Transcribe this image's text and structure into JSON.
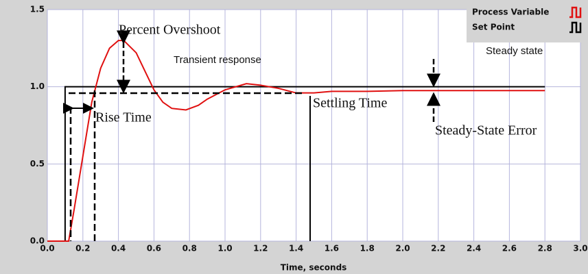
{
  "chart_data": {
    "type": "line",
    "xlabel": "Time, seconds",
    "annotations": [
      "Percent Overshoot",
      "Rise Time",
      "Settling Time",
      "Steady-State Error",
      "Transient response",
      "Steady state"
    ],
    "series": [
      {
        "name": "Process Variable",
        "color": "#e01010",
        "x": [
          0,
          0.12,
          0.15,
          0.2,
          0.25,
          0.3,
          0.35,
          0.4,
          0.43,
          0.5,
          0.55,
          0.6,
          0.65,
          0.7,
          0.78,
          0.85,
          0.9,
          1.0,
          1.12,
          1.2,
          1.3,
          1.4,
          1.5,
          1.6,
          1.8,
          2.0,
          2.2,
          2.4,
          2.6,
          2.8
        ],
        "values": [
          0,
          0,
          0.2,
          0.55,
          0.9,
          1.12,
          1.25,
          1.3,
          1.3,
          1.22,
          1.1,
          0.98,
          0.9,
          0.86,
          0.85,
          0.88,
          0.92,
          0.98,
          1.02,
          1.01,
          0.99,
          0.96,
          0.96,
          0.97,
          0.97,
          0.975,
          0.975,
          0.975,
          0.975,
          0.975
        ]
      },
      {
        "name": "Set Point",
        "color": "#000000",
        "x": [
          0,
          0.1,
          0.1,
          2.8
        ],
        "values": [
          0,
          0,
          1,
          1
        ]
      }
    ],
    "xlim": [
      0,
      3
    ],
    "xticks": [
      {
        "value": 0,
        "label": "0.0"
      },
      0.2,
      0.4,
      0.6,
      0.8,
      {
        "value": 1,
        "label": "1.0"
      },
      1.2,
      1.4,
      1.6,
      1.8,
      {
        "value": 2,
        "label": "2.0"
      },
      2.2,
      2.4,
      2.6,
      2.8,
      {
        "value": 3,
        "label": "3.0"
      }
    ],
    "ylim": [
      0,
      1.5
    ],
    "yticks": [
      {
        "value": 0,
        "label": "0.0"
      },
      0.5,
      {
        "value": 1,
        "label": "1.0"
      },
      1.5
    ],
    "grid": true,
    "legend": "top-right"
  }
}
